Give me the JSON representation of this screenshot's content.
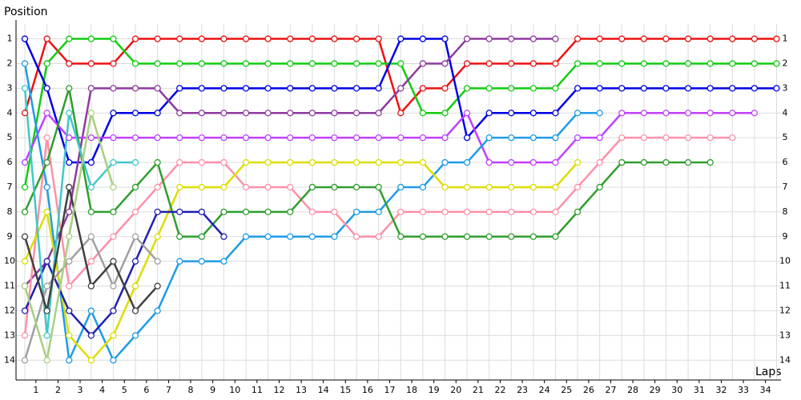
{
  "chart_data": {
    "type": "line",
    "y_label": "Position",
    "x_label": "Laps",
    "x": [
      0,
      1,
      2,
      3,
      4,
      5,
      6,
      7,
      8,
      9,
      10,
      11,
      12,
      13,
      14,
      15,
      16,
      17,
      18,
      19,
      20,
      21,
      22,
      23,
      24,
      25,
      26,
      27,
      28,
      29,
      30,
      31,
      32,
      33,
      34
    ],
    "xlim": [
      -0.4,
      34.2
    ],
    "xticks": [
      {
        "value": 0.5,
        "label": "1"
      },
      {
        "value": 1.5,
        "label": "2"
      },
      {
        "value": 2.5,
        "label": "3"
      },
      {
        "value": 3.5,
        "label": "4"
      },
      {
        "value": 4.5,
        "label": "5"
      },
      {
        "value": 5.5,
        "label": "6"
      },
      {
        "value": 6.5,
        "label": "7"
      },
      {
        "value": 7.5,
        "label": "8"
      },
      {
        "value": 8.5,
        "label": "9"
      },
      {
        "value": 9.5,
        "label": "10"
      },
      {
        "value": 10.5,
        "label": "11"
      },
      {
        "value": 11.5,
        "label": "12"
      },
      {
        "value": 12.5,
        "label": "13"
      },
      {
        "value": 13.5,
        "label": "14"
      },
      {
        "value": 14.5,
        "label": "15"
      },
      {
        "value": 15.5,
        "label": "16"
      },
      {
        "value": 16.5,
        "label": "17"
      },
      {
        "value": 17.5,
        "label": "18"
      },
      {
        "value": 18.5,
        "label": "19"
      },
      {
        "value": 19.5,
        "label": "20"
      },
      {
        "value": 20.5,
        "label": "21"
      },
      {
        "value": 21.5,
        "label": "22"
      },
      {
        "value": 22.5,
        "label": "23"
      },
      {
        "value": 23.5,
        "label": "24"
      },
      {
        "value": 24.5,
        "label": "25"
      },
      {
        "value": 25.5,
        "label": "26"
      },
      {
        "value": 26.5,
        "label": "27"
      },
      {
        "value": 27.5,
        "label": "28"
      },
      {
        "value": 28.5,
        "label": "29"
      },
      {
        "value": 29.5,
        "label": "30"
      },
      {
        "value": 30.5,
        "label": "31"
      },
      {
        "value": 31.5,
        "label": "32"
      },
      {
        "value": 32.5,
        "label": "33"
      },
      {
        "value": 33.5,
        "label": "34"
      }
    ],
    "ylim": [
      14.8,
      0.4
    ],
    "yticks": [
      1,
      2,
      3,
      4,
      5,
      6,
      7,
      8,
      9,
      10,
      11,
      12,
      13,
      14
    ],
    "grid": true,
    "series": [
      {
        "color": "#ee1111",
        "values": [
          4,
          1,
          2,
          2,
          2,
          1,
          1,
          1,
          1,
          1,
          1,
          1,
          1,
          1,
          1,
          1,
          1,
          4,
          3,
          3,
          2,
          2,
          2,
          2,
          2,
          1,
          1,
          1,
          1,
          1,
          1,
          1,
          1,
          1,
          1
        ]
      },
      {
        "color": "#11cc11",
        "values": [
          7,
          2,
          1,
          1,
          1,
          2,
          2,
          2,
          2,
          2,
          2,
          2,
          2,
          2,
          2,
          2,
          2,
          2,
          4,
          4,
          3,
          3,
          3,
          3,
          3,
          2,
          2,
          2,
          2,
          2,
          2,
          2,
          2,
          2,
          2
        ]
      },
      {
        "color": "#0000e6",
        "values": [
          1,
          3,
          6,
          6,
          4,
          4,
          4,
          3,
          3,
          3,
          3,
          3,
          3,
          3,
          3,
          3,
          3,
          1,
          1,
          1,
          5,
          4,
          4,
          4,
          4,
          3,
          3,
          3,
          3,
          3,
          3,
          3,
          3,
          3,
          3
        ]
      },
      {
        "color": "#8e3a9e",
        "values": [
          11,
          10,
          8,
          3,
          3,
          3,
          3,
          4,
          4,
          4,
          4,
          4,
          4,
          4,
          4,
          4,
          4,
          3,
          2,
          2,
          1,
          1,
          1,
          1,
          1,
          null,
          null,
          null,
          null,
          null,
          null,
          null,
          null,
          null,
          null
        ]
      },
      {
        "color": "#c040ff",
        "values": [
          6,
          4,
          5,
          5,
          5,
          5,
          5,
          5,
          5,
          5,
          5,
          5,
          5,
          5,
          5,
          5,
          5,
          5,
          5,
          5,
          4,
          6,
          6,
          6,
          6,
          5,
          5,
          4,
          4,
          4,
          4,
          4,
          4,
          4,
          null
        ]
      },
      {
        "color": "#1e9be8",
        "values": [
          2,
          7,
          14,
          12,
          14,
          13,
          12,
          10,
          10,
          10,
          9,
          9,
          9,
          9,
          9,
          8,
          8,
          7,
          7,
          6,
          6,
          5,
          5,
          5,
          5,
          4,
          4,
          null,
          null,
          null,
          null,
          null,
          null,
          null,
          null
        ]
      },
      {
        "color": "#ff90a8",
        "values": [
          13,
          5,
          11,
          10,
          9,
          8,
          7,
          6,
          6,
          6,
          7,
          7,
          7,
          8,
          8,
          9,
          9,
          8,
          8,
          8,
          8,
          8,
          8,
          8,
          8,
          7,
          6,
          5,
          5,
          5,
          5,
          5,
          5,
          null,
          null
        ]
      },
      {
        "color": "#dddd00",
        "values": [
          10,
          8,
          13,
          14,
          13,
          11,
          9,
          7,
          7,
          7,
          6,
          6,
          6,
          6,
          6,
          6,
          6,
          6,
          6,
          7,
          7,
          7,
          7,
          7,
          7,
          6,
          null,
          null,
          null,
          null,
          null,
          null,
          null,
          null,
          null
        ]
      },
      {
        "color": "#2e9e2e",
        "values": [
          8,
          6,
          3,
          8,
          8,
          7,
          6,
          9,
          9,
          8,
          8,
          8,
          8,
          7,
          7,
          7,
          7,
          9,
          9,
          9,
          9,
          9,
          9,
          9,
          9,
          8,
          7,
          6,
          6,
          6,
          6,
          6,
          null,
          null,
          null
        ]
      },
      {
        "color": "#2020b0",
        "values": [
          12,
          10,
          12,
          13,
          12,
          10,
          8,
          8,
          8,
          9,
          null,
          null,
          null,
          null,
          null,
          null,
          null,
          null,
          null,
          null,
          null,
          null,
          null,
          null,
          null,
          null,
          null,
          null,
          null,
          null,
          null,
          null,
          null,
          null,
          null
        ]
      },
      {
        "color": "#40c8c8",
        "values": [
          3,
          13,
          4,
          7,
          6,
          6,
          null,
          null,
          null,
          null,
          null,
          null,
          null,
          null,
          null,
          null,
          null,
          null,
          null,
          null,
          null,
          null,
          null,
          null,
          null,
          null,
          null,
          null,
          null,
          null,
          null,
          null,
          null,
          null,
          null
        ]
      },
      {
        "color": "#a0a0a0",
        "values": [
          14,
          11,
          10,
          9,
          11,
          9,
          10,
          null,
          null,
          null,
          null,
          null,
          null,
          null,
          null,
          null,
          null,
          null,
          null,
          null,
          null,
          null,
          null,
          null,
          null,
          null,
          null,
          null,
          null,
          null,
          null,
          null,
          null,
          null,
          null
        ]
      },
      {
        "color": "#404040",
        "values": [
          9,
          12,
          7,
          11,
          10,
          12,
          11,
          null,
          null,
          null,
          null,
          null,
          null,
          null,
          null,
          null,
          null,
          null,
          null,
          null,
          null,
          null,
          null,
          null,
          null,
          null,
          null,
          null,
          null,
          null,
          null,
          null,
          null,
          null,
          null
        ]
      },
      {
        "color": "#a8d080",
        "values": [
          11,
          14,
          9,
          4,
          7,
          null,
          null,
          null,
          null,
          null,
          null,
          null,
          null,
          null,
          null,
          null,
          null,
          null,
          null,
          null,
          null,
          null,
          null,
          null,
          null,
          null,
          null,
          null,
          null,
          null,
          null,
          null,
          null,
          null,
          null
        ]
      }
    ]
  }
}
